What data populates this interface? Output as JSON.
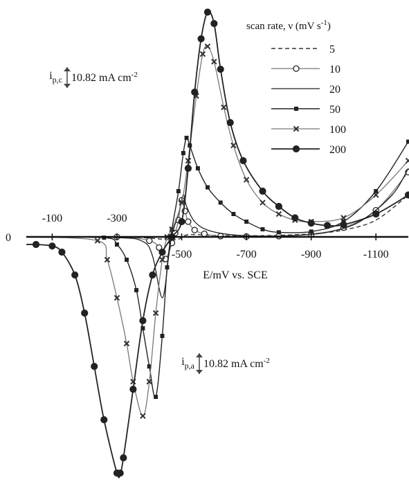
{
  "chart_data": {
    "type": "line",
    "xlabel": "E/mV vs. SCE",
    "ylabel": "",
    "y_zero_label": "0",
    "x_ticks_top": [
      "-100",
      "-300"
    ],
    "x_ticks_bottom": [
      "-500",
      "-700",
      "-900",
      "-1100"
    ],
    "x_tick_values": [
      -100,
      -300,
      -500,
      -700,
      -900,
      -1100
    ],
    "xlim": [
      -20,
      -1200
    ],
    "ylim": [
      -31,
      30
    ],
    "legend_title": "scan rate, ν (mV s",
    "legend_title_sup": "-1",
    "legend_title_end": ")",
    "legend_position": "top-right",
    "scale_bar_cathodic": {
      "label_main": "i",
      "label_sub": "p,c",
      "text": "10.82 mA cm",
      "sup": "-2",
      "value": 10.82
    },
    "scale_bar_anodic": {
      "label_main": "i",
      "label_sub": "p,a",
      "text": "10.82 mA cm",
      "sup": "-2",
      "value": 10.82
    },
    "series": [
      {
        "name": "5",
        "marker": "none",
        "dash": "dashed",
        "x": [
          -20,
          -300,
          -380,
          -440,
          -470,
          -490,
          -500,
          -510,
          -525,
          -550,
          -600,
          -700,
          -800,
          -900,
          -1000,
          -1100,
          -1200
        ],
        "y": [
          0,
          0,
          -0.1,
          -0.3,
          -0.4,
          -0.3,
          -0.1,
          0.2,
          0.3,
          0.3,
          0.2,
          0.15,
          0.2,
          0.4,
          0.9,
          2.2,
          5.5
        ]
      },
      {
        "name": "10",
        "marker": "circle-open",
        "dash": "solid",
        "x": [
          -20,
          -300,
          -400,
          -430,
          -450,
          -470,
          -480,
          -490,
          -500,
          -510,
          -520,
          -540,
          -570,
          -620,
          -700,
          -800,
          -900,
          -1000,
          -1100,
          -1200
        ],
        "y": [
          0,
          0,
          -0.5,
          -1.4,
          -2.9,
          -0.8,
          0.5,
          2.2,
          4.8,
          3.4,
          2,
          0.9,
          0.4,
          0.1,
          0.05,
          0.1,
          0.35,
          1.2,
          3.5,
          8.5
        ]
      },
      {
        "name": "20",
        "marker": "none",
        "dash": "solid",
        "x": [
          -20,
          -300,
          -380,
          -410,
          -440,
          -460,
          -470,
          -490,
          -505,
          -515,
          -540,
          -580,
          -650,
          -750,
          -850,
          -950,
          -1050,
          -1150,
          -1200
        ],
        "y": [
          0,
          -0.1,
          -0.6,
          -2.5,
          -8,
          -2.5,
          0.3,
          3,
          5.5,
          4,
          2,
          0.9,
          0.3,
          0.1,
          0.2,
          0.6,
          2,
          5.5,
          9
        ]
      },
      {
        "name": "50",
        "marker": "square-filled",
        "dash": "solid",
        "x": [
          -20,
          -260,
          -300,
          -330,
          -360,
          -380,
          -400,
          -420,
          -440,
          -455,
          -470,
          -490,
          -505,
          -515,
          -525,
          -550,
          -580,
          -620,
          -660,
          -700,
          -750,
          -800,
          -900,
          -1000,
          -1100,
          -1200
        ],
        "y": [
          0,
          -0.1,
          -1,
          -3,
          -7,
          -12,
          -17,
          -21,
          -13,
          -4,
          1,
          6,
          11,
          13,
          12,
          9,
          6.5,
          4.5,
          3,
          2,
          1,
          0.6,
          0.7,
          2,
          6,
          12.5
        ]
      },
      {
        "name": "100",
        "marker": "x",
        "dash": "solid",
        "x": [
          -20,
          -240,
          -270,
          -300,
          -330,
          -350,
          -380,
          -400,
          -420,
          -440,
          -455,
          -470,
          -500,
          -520,
          -545,
          -565,
          -580,
          -600,
          -630,
          -660,
          -700,
          -750,
          -800,
          -850,
          -900,
          -1000,
          -1100,
          -1200
        ],
        "y": [
          0,
          -0.5,
          -3,
          -8,
          -14,
          -19,
          -23.5,
          -19,
          -10,
          -3,
          0,
          1,
          4.5,
          10,
          18.5,
          24,
          25,
          23,
          17,
          12,
          7.5,
          4.5,
          3,
          2.2,
          2,
          2.5,
          5.5,
          10
        ]
      },
      {
        "name": "200",
        "marker": "circle-filled",
        "dash": "solid",
        "x": [
          -20,
          -50,
          -100,
          -130,
          -170,
          -200,
          -230,
          -260,
          -300,
          -310,
          -320,
          -350,
          -380,
          -410,
          -440,
          -470,
          -500,
          -520,
          -540,
          -560,
          -580,
          -600,
          -620,
          -650,
          -690,
          -750,
          -800,
          -850,
          -900,
          -950,
          -1000,
          -1100,
          -1200
        ],
        "y": [
          -1,
          -1,
          -1.2,
          -2,
          -5,
          -10,
          -17,
          -24,
          -31,
          -31,
          -29,
          -20,
          -11,
          -5,
          -2,
          0,
          2,
          9,
          19,
          26,
          29.5,
          28,
          22,
          15,
          10,
          6,
          4,
          2.5,
          1.8,
          1.5,
          1.6,
          3,
          5.5
        ]
      }
    ]
  }
}
